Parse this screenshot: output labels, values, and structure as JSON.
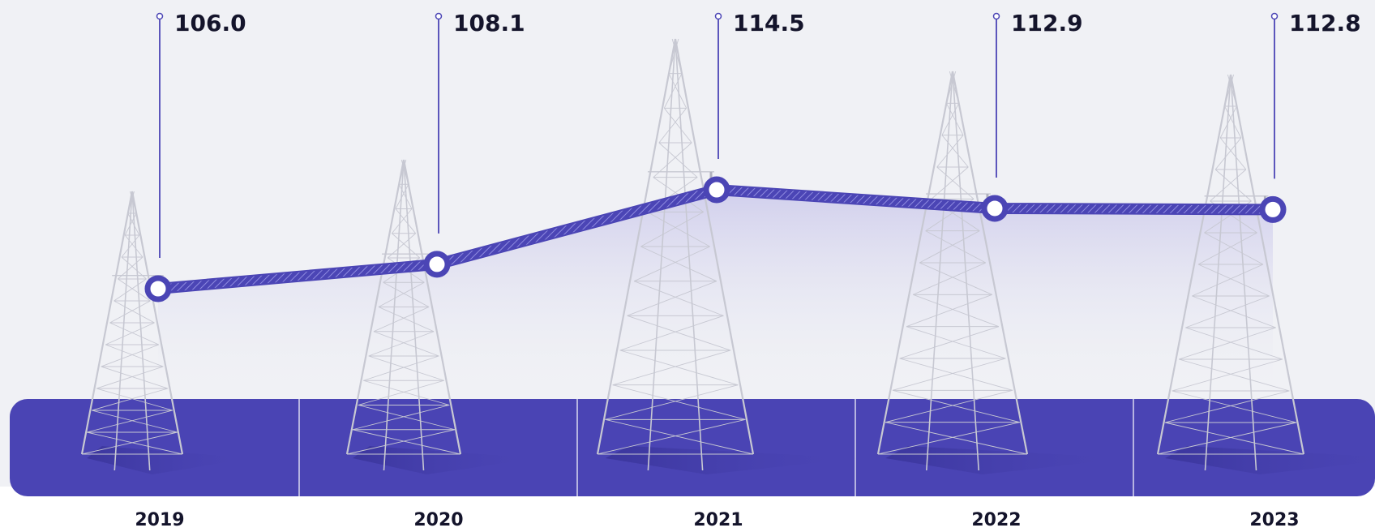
{
  "chart_data": {
    "type": "line",
    "title": "",
    "xlabel": "",
    "ylabel": "",
    "categories": [
      "2019",
      "2020",
      "2021",
      "2022",
      "2023"
    ],
    "series": [
      {
        "values": [
          106.0,
          108.1,
          114.5,
          112.9,
          112.8
        ]
      }
    ],
    "value_labels": [
      "106.0",
      "108.1",
      "114.5",
      "112.9",
      "112.8"
    ],
    "grid": false,
    "legend": "none"
  },
  "colors": {
    "accent": "#4b45b5",
    "band": "#4a44b4",
    "text": "#14142b",
    "background": "#f0f1f5"
  }
}
